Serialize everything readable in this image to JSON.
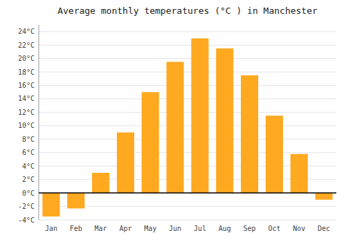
{
  "chart_data": {
    "type": "bar",
    "title": "Average monthly temperatures (°C ) in Manchester",
    "categories": [
      "Jan",
      "Feb",
      "Mar",
      "Apr",
      "May",
      "Jun",
      "Jul",
      "Aug",
      "Sep",
      "Oct",
      "Nov",
      "Dec"
    ],
    "values": [
      -3.5,
      -2.3,
      3.0,
      9.0,
      15.0,
      19.5,
      23.0,
      21.5,
      17.5,
      11.5,
      5.8,
      -1.0
    ],
    "color": "#FFA920",
    "ylim": [
      -4,
      25
    ],
    "yticks": [
      {
        "value": -4,
        "label": "-4°C"
      },
      {
        "value": -2,
        "label": "-2°C"
      },
      {
        "value": 0,
        "label": "0°C"
      },
      {
        "value": 2,
        "label": "2°C"
      },
      {
        "value": 4,
        "label": "4°C"
      },
      {
        "value": 6,
        "label": "6°C"
      },
      {
        "value": 8,
        "label": "8°C"
      },
      {
        "value": 10,
        "label": "10°C"
      },
      {
        "value": 12,
        "label": "12°C"
      },
      {
        "value": 14,
        "label": "14°C"
      },
      {
        "value": 16,
        "label": "16°C"
      },
      {
        "value": 18,
        "label": "18°C"
      },
      {
        "value": 20,
        "label": "20°C"
      },
      {
        "value": 22,
        "label": "22°C"
      },
      {
        "value": 24,
        "label": "24°C"
      }
    ],
    "grid": true
  }
}
